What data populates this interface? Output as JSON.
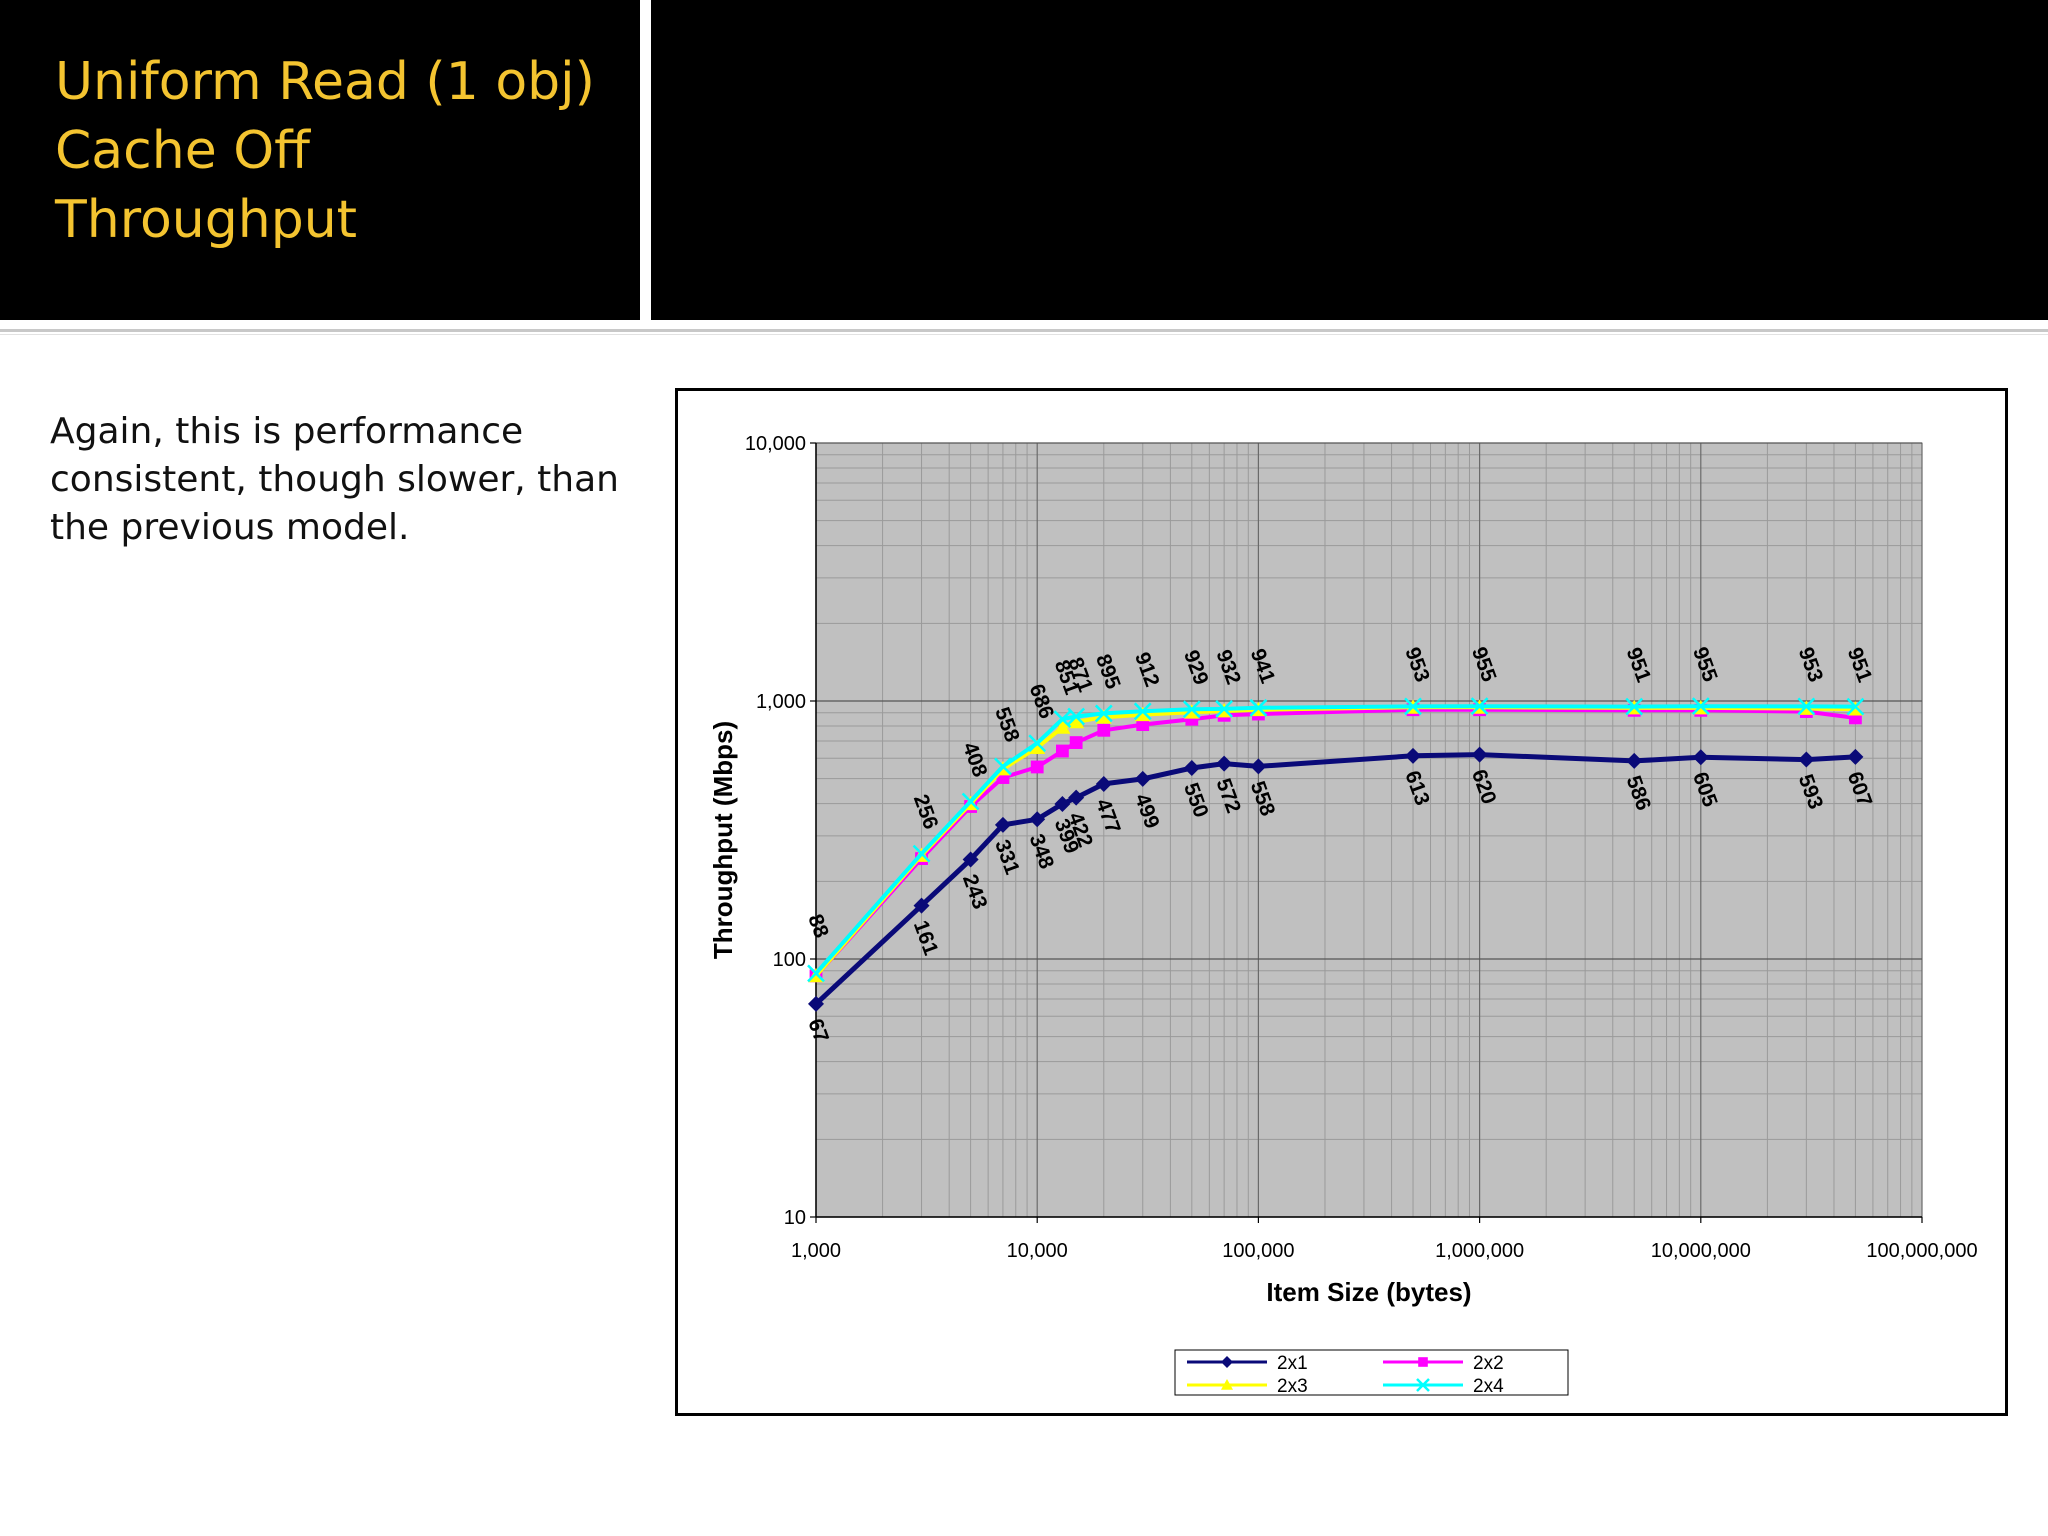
{
  "slide": {
    "title_lines": [
      "Uniform Read (1 obj)",
      "Cache Off",
      "Throughput"
    ],
    "body_lines": [
      "Again, this is performance",
      "consistent, though slower, than",
      "the previous model."
    ]
  },
  "colors": {
    "title": "#f4c430",
    "plot_bg": "#c0c0c0",
    "series_2x1": "#0a0a78",
    "series_2x2": "#ff00ff",
    "series_2x3": "#ffff00",
    "series_2x4": "#00ffff"
  },
  "chart_data": {
    "type": "line",
    "title": "",
    "xlabel": "Item Size (bytes)",
    "ylabel": "Throughput (Mbps)",
    "x_scale": "log",
    "y_scale": "log",
    "xlim": [
      1000,
      100000000
    ],
    "ylim": [
      10,
      10000
    ],
    "x_ticks": [
      "1,000",
      "10,000",
      "100,000",
      "1,000,000",
      "10,000,000",
      "100,000,000"
    ],
    "y_ticks": [
      "10",
      "100",
      "1,000",
      "10,000"
    ],
    "grid": true,
    "legend_position": "bottom",
    "x": [
      1000,
      3000,
      5000,
      7000,
      10000,
      13000,
      15000,
      20000,
      30000,
      50000,
      70000,
      100000,
      500000,
      1000000,
      5000000,
      10000000,
      30000000,
      50000000
    ],
    "series": [
      {
        "name": "2x1",
        "marker": "diamond",
        "values": [
          67,
          161,
          243,
          331,
          348,
          399,
          422,
          477,
          499,
          550,
          572,
          558,
          613,
          620,
          586,
          605,
          593,
          607
        ]
      },
      {
        "name": "2x2",
        "marker": "square",
        "values": [
          86,
          245,
          390,
          505,
          555,
          640,
          690,
          770,
          810,
          850,
          880,
          890,
          925,
          925,
          920,
          920,
          910,
          860
        ]
      },
      {
        "name": "2x3",
        "marker": "triangle",
        "values": [
          86,
          252,
          400,
          545,
          660,
          790,
          830,
          865,
          885,
          905,
          915,
          925,
          945,
          945,
          940,
          940,
          935,
          930
        ]
      },
      {
        "name": "2x4",
        "marker": "x",
        "values": [
          88,
          256,
          408,
          558,
          686,
          851,
          871,
          895,
          912,
          929,
          932,
          941,
          953,
          955,
          951,
          955,
          953,
          951
        ]
      }
    ],
    "data_labels_below": [
      "67",
      "161",
      "243",
      "331",
      "348",
      "399",
      "422",
      "477",
      "499",
      "550",
      "572",
      "558",
      "613",
      "620",
      "586",
      "605",
      "593",
      "607"
    ],
    "data_labels_above": [
      "88",
      "256",
      "408",
      "558",
      "686",
      "851",
      "871",
      "895",
      "912",
      "929",
      "932",
      "941",
      "953",
      "955",
      "951",
      "955",
      "953",
      "951"
    ]
  }
}
